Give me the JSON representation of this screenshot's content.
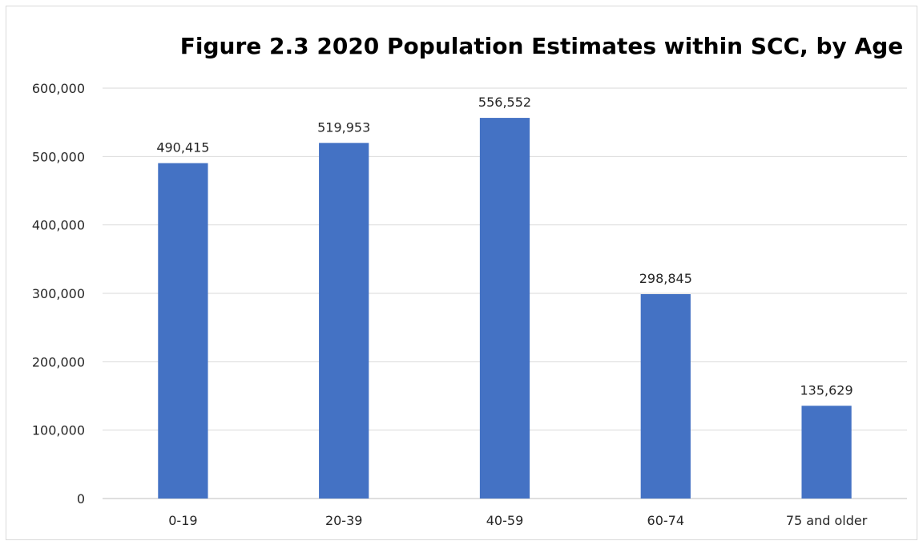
{
  "chart_data": {
    "type": "bar",
    "title": "Figure 2.3 2020 Population Estimates within SCC, by Age",
    "xlabel": "",
    "ylabel": "",
    "categories": [
      "0-19",
      "20-39",
      "40-59",
      "60-74",
      "75 and older"
    ],
    "values": [
      490415,
      519953,
      556552,
      298845,
      135629
    ],
    "data_labels": [
      "490,415",
      "519,953",
      "556,552",
      "298,845",
      "135,629"
    ],
    "ylim": [
      0,
      600000
    ],
    "yticks": [
      0,
      100000,
      200000,
      300000,
      400000,
      500000,
      600000
    ],
    "ytick_labels": [
      "0",
      "100,000",
      "200,000",
      "300,000",
      "400,000",
      "500,000",
      "600,000"
    ],
    "grid": true,
    "legend": "none",
    "bar_color": "#4472c4"
  }
}
